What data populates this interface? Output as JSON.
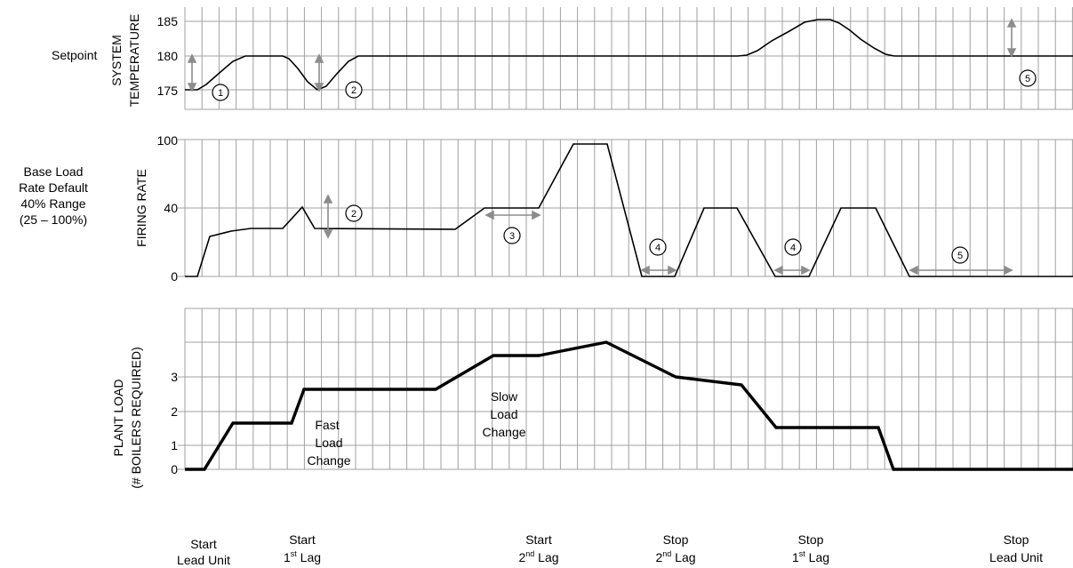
{
  "left_labels": {
    "setpoint": "Setpoint",
    "base_load": [
      "Base Load",
      "Rate Default",
      "40% Range",
      "(25 – 100%)"
    ]
  },
  "panels": {
    "temperature": {
      "ylabel": [
        "SYSTEM",
        "TEMPERATURE"
      ],
      "ticks": [
        {
          "value": 185,
          "label": "185"
        },
        {
          "value": 180,
          "label": "180"
        },
        {
          "value": 175,
          "label": "175"
        }
      ],
      "ylim": [
        170,
        187
      ]
    },
    "firing": {
      "ylabel": [
        "FIRING RATE"
      ],
      "ticks": [
        {
          "value": 100,
          "label": "100"
        },
        {
          "value": 40,
          "label": "40"
        },
        {
          "value": 0,
          "label": "0"
        }
      ],
      "ylim": [
        0,
        100
      ]
    },
    "plant": {
      "ylabel": [
        "PLANT LOAD",
        "(# BOILERS REQUIRED)"
      ],
      "ticks": [
        {
          "value": 3,
          "label": "3"
        },
        {
          "value": 2,
          "label": "2"
        },
        {
          "value": 1,
          "label": "1"
        },
        {
          "value": 0,
          "label": "0"
        }
      ],
      "ylim": [
        0,
        5
      ]
    }
  },
  "annotations": {
    "fast_load": [
      "Fast",
      "Load",
      "Change"
    ],
    "slow_load": [
      "Slow",
      "Load",
      "Change"
    ],
    "markers": [
      "1",
      "2",
      "2",
      "3",
      "4",
      "4",
      "5",
      "5"
    ]
  },
  "events": [
    {
      "line1": "Start",
      "line2": "Lead Unit",
      "sup": ""
    },
    {
      "line1": "Start",
      "line2": "Lag",
      "sup": "st",
      "num": "1"
    },
    {
      "line1": "Start",
      "line2": "Lag",
      "sup": "nd",
      "num": "2"
    },
    {
      "line1": "Stop",
      "line2": "Lag",
      "sup": "nd",
      "num": "2"
    },
    {
      "line1": "Stop",
      "line2": "Lag",
      "sup": "st",
      "num": "1"
    },
    {
      "line1": "Stop",
      "line2": "Lead Unit",
      "sup": ""
    }
  ],
  "colors": {
    "grid": "#a0a0a0",
    "curve": "#000000",
    "arrow": "#8c8c8c"
  }
}
